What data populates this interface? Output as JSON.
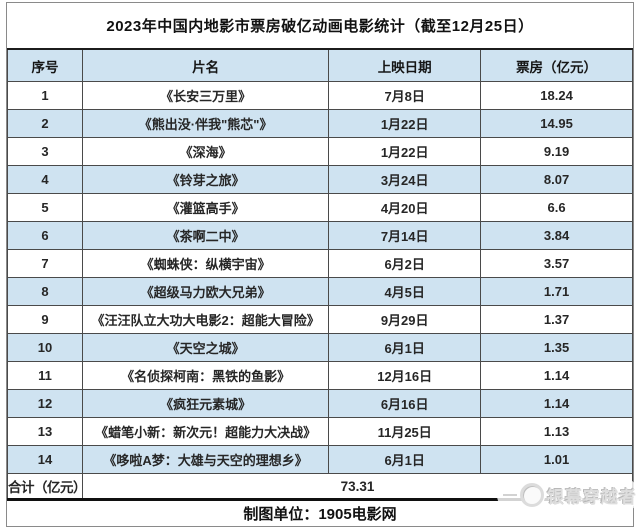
{
  "chart_data": {
    "type": "table",
    "title": "2023年中国内地影市票房破亿动画电影统计（截至12月25日）",
    "columns": [
      "序号",
      "片名",
      "上映日期",
      "票房（亿元）"
    ],
    "rows": [
      [
        "1",
        "《长安三万里》",
        "7月8日",
        "18.24"
      ],
      [
        "2",
        "《熊出没·伴我\"熊芯\"》",
        "1月22日",
        "14.95"
      ],
      [
        "3",
        "《深海》",
        "1月22日",
        "9.19"
      ],
      [
        "4",
        "《铃芽之旅》",
        "3月24日",
        "8.07"
      ],
      [
        "5",
        "《灌篮高手》",
        "4月20日",
        "6.6"
      ],
      [
        "6",
        "《茶啊二中》",
        "7月14日",
        "3.84"
      ],
      [
        "7",
        "《蜘蛛侠：纵横宇宙》",
        "6月2日",
        "3.57"
      ],
      [
        "8",
        "《超级马力欧大兄弟》",
        "4月5日",
        "1.71"
      ],
      [
        "9",
        "《汪汪队立大功大电影2：超能大冒险》",
        "9月29日",
        "1.37"
      ],
      [
        "10",
        "《天空之城》",
        "6月1日",
        "1.35"
      ],
      [
        "11",
        "《名侦探柯南：黑铁的鱼影》",
        "12月16日",
        "1.14"
      ],
      [
        "12",
        "《疯狂元素城》",
        "6月16日",
        "1.14"
      ],
      [
        "13",
        "《蜡笔小新：新次元！超能力大决战》",
        "11月25日",
        "1.13"
      ],
      [
        "14",
        "《哆啦A梦：大雄与天空的理想乡》",
        "6月1日",
        "1.01"
      ]
    ],
    "total_label": "合计（亿元）",
    "total_value": "73.31",
    "source": "制图单位：1905电影网",
    "layout": {
      "alternating_rows": true,
      "grid": "on"
    }
  },
  "watermark": {
    "text": "银幕穿越者",
    "logo": "circle-face-icon"
  },
  "colors": {
    "row_alt_blue": "#cfe3f1",
    "grid_border": "#4a4a4a",
    "heavy_rule": "#101010",
    "watermark_gray": "#dedede",
    "background": "#ffffff"
  }
}
